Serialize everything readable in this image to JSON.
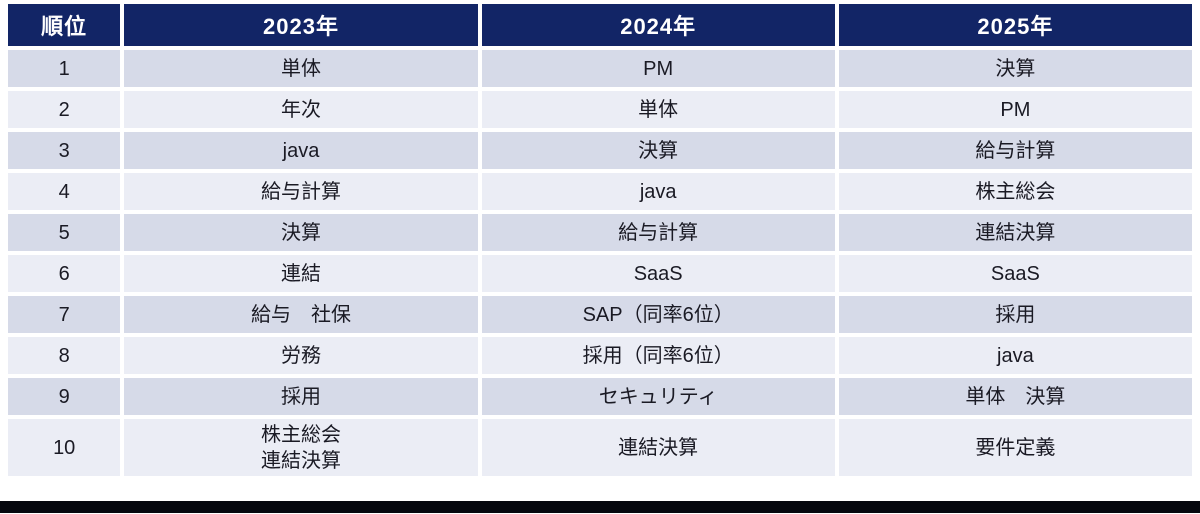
{
  "chart_data": {
    "type": "table",
    "columns": [
      "順位",
      "2023年",
      "2024年",
      "2025年"
    ],
    "rows": [
      [
        "1",
        "単体",
        "PM",
        "決算"
      ],
      [
        "2",
        "年次",
        "単体",
        "PM"
      ],
      [
        "3",
        "java",
        "決算",
        "給与計算"
      ],
      [
        "4",
        "給与計算",
        "java",
        "株主総会"
      ],
      [
        "5",
        "決算",
        "給与計算",
        "連結決算"
      ],
      [
        "6",
        "連結",
        "SaaS",
        "SaaS"
      ],
      [
        "7",
        "給与　社保",
        "SAP（同率6位）",
        "採用"
      ],
      [
        "8",
        "労務",
        "採用（同率6位）",
        "java"
      ],
      [
        "9",
        "採用",
        "セキュリティ",
        "単体　決算"
      ],
      [
        "10",
        "株主総会\n連結決算",
        "連結決算",
        "要件定義"
      ]
    ],
    "layout": {
      "header_position": "top",
      "banded_rows": true
    }
  },
  "colors": {
    "header_bg": "#122566",
    "header_text": "#ffffff",
    "row_odd_bg": "#d6dae8",
    "row_even_bg": "#ebedf5",
    "body_text": "#1a1a24",
    "cell_gap": "#ffffff",
    "bottom_bar": "#05070e"
  }
}
